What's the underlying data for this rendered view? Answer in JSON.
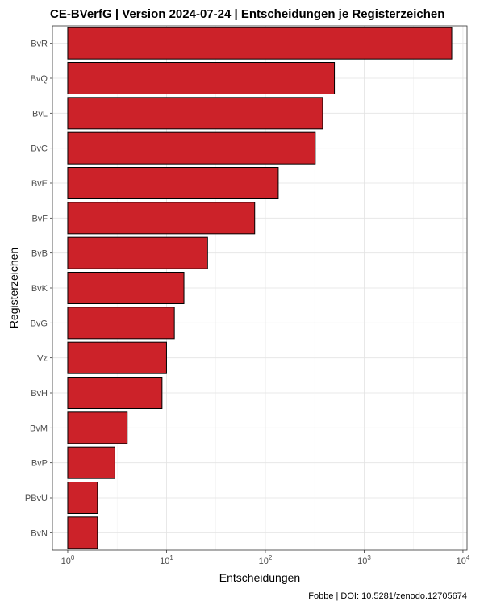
{
  "chart_data": {
    "type": "bar",
    "orientation": "horizontal",
    "title": "CE-BVerfG | Version 2024-07-24 | Entscheidungen je Registerzeichen",
    "xlabel": "Entscheidungen",
    "ylabel": "Registerzeichen",
    "caption": "Fobbe | DOI: 10.5281/zenodo.12705674",
    "x_scale": "log10",
    "xlim": [
      0.7,
      11000
    ],
    "x_ticks": [
      1,
      10,
      100,
      1000,
      10000
    ],
    "x_tick_labels": [
      {
        "base": "10",
        "exp": "0"
      },
      {
        "base": "10",
        "exp": "1"
      },
      {
        "base": "10",
        "exp": "2"
      },
      {
        "base": "10",
        "exp": "3"
      },
      {
        "base": "10",
        "exp": "4"
      }
    ],
    "grid": true,
    "categories": [
      "BvR",
      "BvQ",
      "BvL",
      "BvC",
      "BvE",
      "BvF",
      "BvB",
      "BvK",
      "BvG",
      "Vz",
      "BvH",
      "BvM",
      "BvP",
      "PBvU",
      "BvN"
    ],
    "values": [
      7700,
      500,
      380,
      320,
      135,
      78,
      26,
      15,
      12,
      10,
      9,
      4,
      3,
      2,
      2
    ],
    "bar_color": "#cc2229",
    "bar_border": "#000000"
  }
}
